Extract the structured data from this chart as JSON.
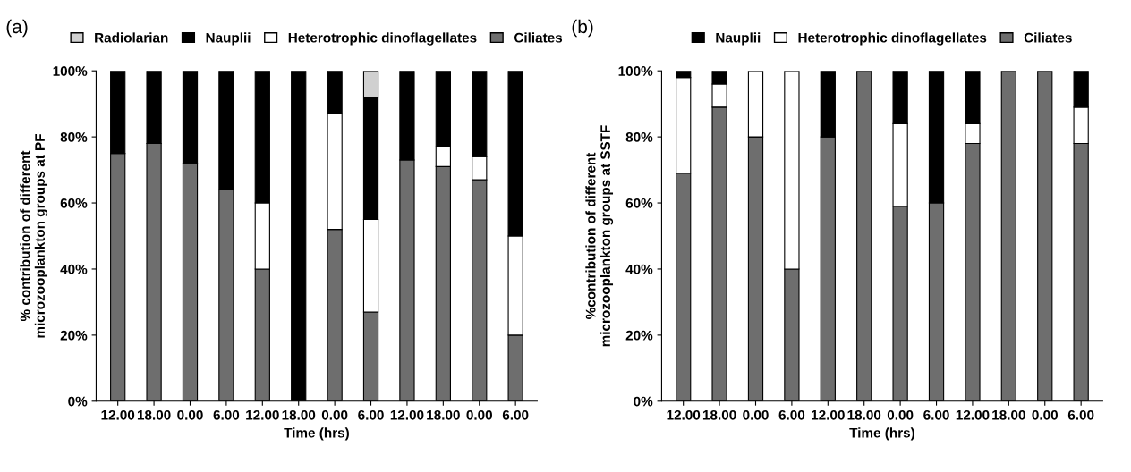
{
  "chart_data": [
    {
      "type": "bar",
      "stacked": true,
      "xlabel": "Time (hrs)",
      "ylabel": "% contribution of different\nmicrozooplankton groups at PF",
      "annotations": [
        "(a)"
      ],
      "categories": [
        "12.00",
        "18.00",
        "0.00",
        "6.00",
        "12.00",
        "18.00",
        "0.00",
        "6.00",
        "12.00",
        "18.00",
        "0.00",
        "6.00"
      ],
      "series": [
        {
          "name": "Ciliates",
          "color": "#6e6e6e",
          "values": [
            75,
            78,
            72,
            64,
            40,
            0,
            52,
            27,
            73,
            71,
            67,
            20
          ]
        },
        {
          "name": "Heterotrophic dinoflagellates",
          "color": "#ffffff",
          "values": [
            0,
            0,
            0,
            0,
            20,
            0,
            35,
            28,
            0,
            6,
            7,
            30
          ]
        },
        {
          "name": "Nauplii",
          "color": "#000000",
          "values": [
            25,
            22,
            28,
            36,
            40,
            100,
            13,
            37,
            27,
            23,
            26,
            50
          ]
        },
        {
          "name": "Radiolarian",
          "color": "#d0d0d0",
          "values": [
            0,
            0,
            0,
            0,
            0,
            0,
            0,
            8,
            0,
            0,
            0,
            0
          ]
        }
      ],
      "ylim": [
        0,
        100
      ],
      "yticks": [
        {
          "value": 0,
          "label": "0%"
        },
        {
          "value": 20,
          "label": "20%"
        },
        {
          "value": 40,
          "label": "40%"
        },
        {
          "value": 60,
          "label": "60%"
        },
        {
          "value": 80,
          "label": "80%"
        },
        {
          "value": 100,
          "label": "100%"
        }
      ],
      "grid": false,
      "legend": "top"
    },
    {
      "type": "bar",
      "stacked": true,
      "xlabel": "Time (hrs)",
      "ylabel": "%contribution of different\nmicrozooplankton groups at SSTF",
      "annotations": [
        "(b)"
      ],
      "categories": [
        "12.00",
        "18.00",
        "0.00",
        "6.00",
        "12.00",
        "18.00",
        "0.00",
        "6.00",
        "12.00",
        "18.00",
        "0.00",
        "6.00"
      ],
      "series": [
        {
          "name": "Ciliates",
          "color": "#6e6e6e",
          "values": [
            69,
            89,
            80,
            40,
            80,
            100,
            59,
            60,
            78,
            100,
            100,
            78
          ]
        },
        {
          "name": "Heterotrophic dinoflagellates",
          "color": "#ffffff",
          "values": [
            29,
            7,
            20,
            60,
            0,
            0,
            25,
            0,
            6,
            0,
            0,
            11
          ]
        },
        {
          "name": "Nauplii",
          "color": "#000000",
          "values": [
            2,
            4,
            0,
            0,
            20,
            0,
            16,
            40,
            16,
            0,
            0,
            11
          ]
        }
      ],
      "ylim": [
        0,
        100
      ],
      "yticks": [
        {
          "value": 0,
          "label": "0%"
        },
        {
          "value": 20,
          "label": "20%"
        },
        {
          "value": 40,
          "label": "40%"
        },
        {
          "value": 60,
          "label": "60%"
        },
        {
          "value": 80,
          "label": "80%"
        },
        {
          "value": 100,
          "label": "100%"
        }
      ],
      "grid": false,
      "legend": "top"
    }
  ]
}
